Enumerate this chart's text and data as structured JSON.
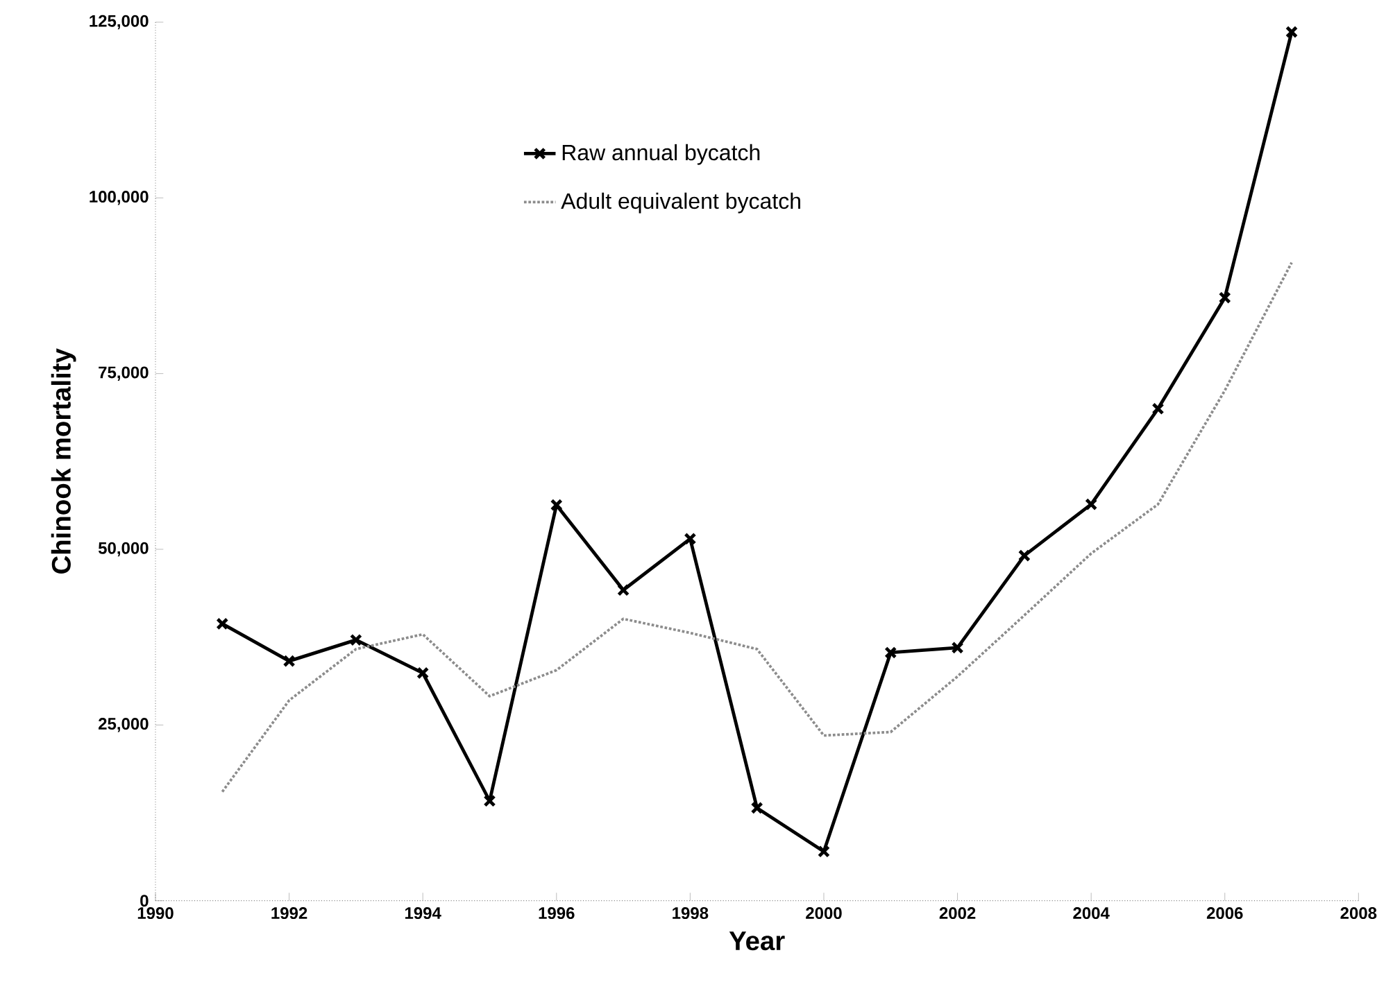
{
  "chart_data": {
    "type": "line",
    "xlabel": "Year",
    "ylabel": "Chinook mortality",
    "x": [
      1991,
      1992,
      1993,
      1994,
      1995,
      1996,
      1997,
      1998,
      1999,
      2000,
      2001,
      2002,
      2003,
      2004,
      2005,
      2006,
      2007
    ],
    "series": [
      {
        "name": "Raw annual bycatch",
        "color": "#000000",
        "marker": "cross",
        "line_style": "solid",
        "values": [
          39400,
          34100,
          37100,
          32400,
          14200,
          56300,
          44200,
          51500,
          13200,
          7000,
          35300,
          36000,
          49100,
          56400,
          70000,
          85800,
          123600
        ]
      },
      {
        "name": "Adult equivalent bycatch",
        "color": "#8c8c8c",
        "marker": "none",
        "line_style": "dotted",
        "values": [
          15500,
          28500,
          35800,
          37900,
          29100,
          32800,
          40100,
          38100,
          35800,
          23500,
          24000,
          31900,
          40600,
          49400,
          56400,
          72600,
          90800
        ]
      }
    ],
    "xlim": [
      1990,
      2008
    ],
    "xticks": [
      1990,
      1992,
      1994,
      1996,
      1998,
      2000,
      2002,
      2004,
      2006,
      2008
    ],
    "ylim": [
      0,
      125000
    ],
    "yticks": [
      0,
      {
        "value": 25000,
        "label": "25,000"
      },
      {
        "value": 50000,
        "label": "50,000"
      },
      {
        "value": 75000,
        "label": "75,000"
      },
      {
        "value": 100000,
        "label": "100,000"
      },
      {
        "value": 125000,
        "label": "125,000"
      }
    ],
    "grid": false,
    "legend": "top"
  }
}
